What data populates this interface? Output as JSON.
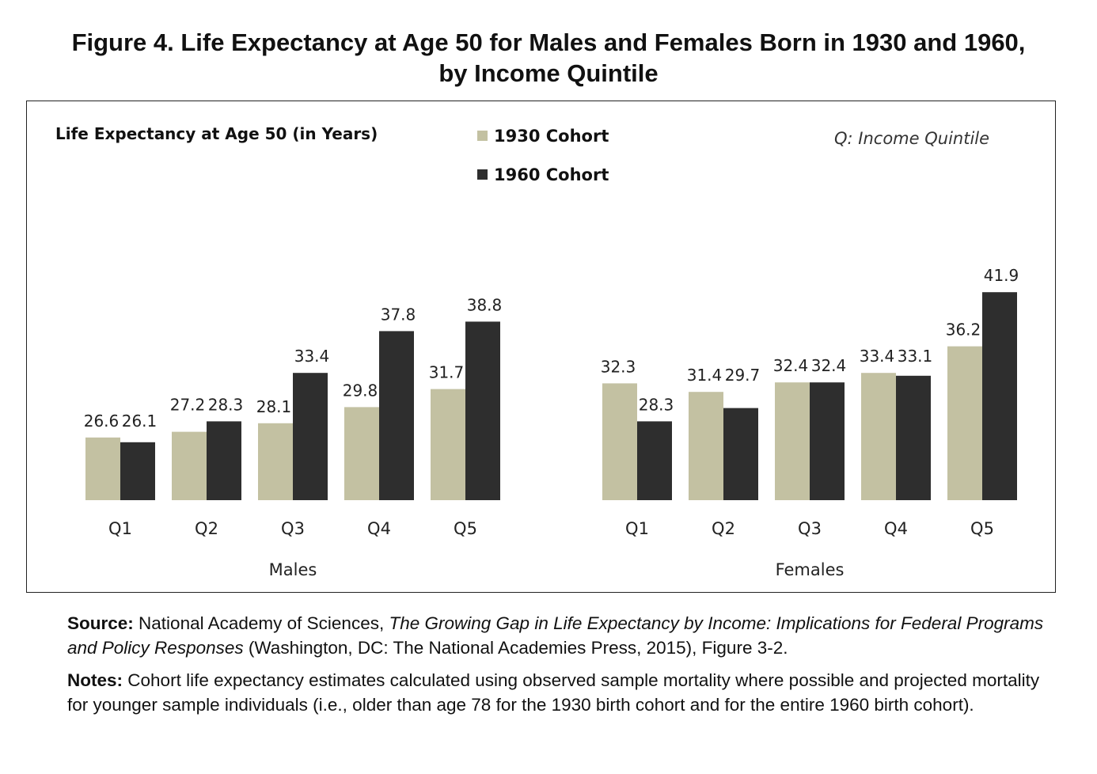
{
  "figure": {
    "title_line1": "Figure 4. Life Expectancy at Age 50 for Males and Females Born in 1930 and 1960,",
    "title_line2": "by Income Quintile"
  },
  "chart_data": {
    "type": "bar",
    "ylabel": "Life Expectancy at Age 50 (in Years)",
    "annotation": "Q: Income Quintile",
    "ylim": [
      20,
      45
    ],
    "grid": false,
    "legend": [
      "1930 Cohort",
      "1960 Cohort"
    ],
    "colors": {
      "1930 Cohort": "#c3c1a2",
      "1960 Cohort": "#2e2e2e"
    },
    "panels": [
      {
        "group_label": "Males",
        "categories": [
          "Q1",
          "Q2",
          "Q3",
          "Q4",
          "Q5"
        ],
        "series": [
          {
            "name": "1930 Cohort",
            "values": [
              26.6,
              27.2,
              28.1,
              29.8,
              31.7
            ]
          },
          {
            "name": "1960 Cohort",
            "values": [
              26.1,
              28.3,
              33.4,
              37.8,
              38.8
            ]
          }
        ]
      },
      {
        "group_label": "Females",
        "categories": [
          "Q1",
          "Q2",
          "Q3",
          "Q4",
          "Q5"
        ],
        "series": [
          {
            "name": "1930 Cohort",
            "values": [
              32.3,
              31.4,
              32.4,
              33.4,
              36.2
            ]
          },
          {
            "name": "1960 Cohort",
            "values": [
              28.3,
              29.7,
              32.4,
              33.1,
              41.9
            ]
          }
        ]
      }
    ]
  },
  "notes": {
    "source_label": "Source:",
    "source_org": "National Academy of Sciences,",
    "source_title": "The Growing Gap in Life Expectancy by Income: Implications for Federal Programs and Policy Responses",
    "source_rest": "(Washington, DC: The National Academies Press, 2015), Figure 3-2.",
    "notes_label": "Notes:",
    "notes_text": "Cohort life expectancy estimates calculated using observed sample mortality where possible and projected mortality for younger sample individuals (i.e., older than age 78 for the 1930 birth cohort and for the entire 1960 birth cohort)."
  }
}
